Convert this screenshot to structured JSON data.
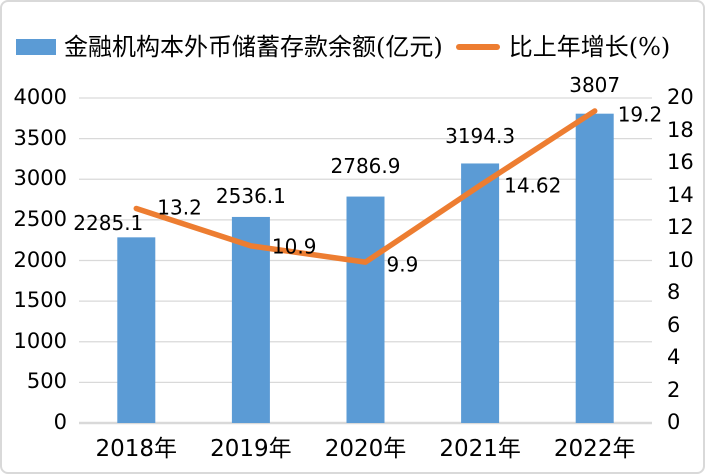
{
  "chart_data": {
    "type": "bar",
    "subtype": "combo-bar-line",
    "title": "",
    "categories": [
      "2018年",
      "2019年",
      "2020年",
      "2021年",
      "2022年"
    ],
    "series": [
      {
        "name": "金融机构本外币储蓄存款余额(亿元)",
        "type": "bar",
        "axis": "left",
        "color": "#5B9BD5",
        "values": [
          2285.1,
          2536.1,
          2786.9,
          3194.3,
          3807
        ],
        "labels": [
          "2285.1",
          "2536.1",
          "2786.9",
          "3194.3",
          "3807"
        ]
      },
      {
        "name": "比上年增长(%)",
        "type": "line",
        "axis": "right",
        "color": "#ED7D31",
        "values": [
          13.2,
          10.9,
          9.9,
          14.62,
          19.2
        ],
        "labels": [
          "13.2",
          "10.9",
          "9.9",
          "14.62",
          "19.2"
        ]
      }
    ],
    "left_axis": {
      "min": 0,
      "max": 4000,
      "step": 500,
      "tick_labels": [
        "0",
        "500",
        "1000",
        "1500",
        "2000",
        "2500",
        "3000",
        "3500",
        "4000"
      ]
    },
    "right_axis": {
      "min": 0,
      "max": 20,
      "step": 2,
      "tick_labels": [
        "0",
        "2",
        "4",
        "6",
        "8",
        "10",
        "12",
        "14",
        "16",
        "18",
        "20"
      ]
    },
    "grid": true,
    "legend_position": "top",
    "colors": {
      "bar": "#5B9BD5",
      "line": "#ED7D31",
      "gridline": "#D9D9D9",
      "axis_text": "#000000",
      "border": "#D9D9D9",
      "background": "#FFFFFF"
    }
  }
}
